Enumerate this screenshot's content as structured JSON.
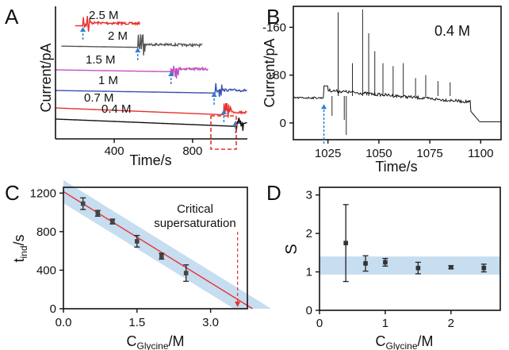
{
  "chart_data": [
    {
      "panel": "A",
      "type": "line",
      "ylabel": "Current/pA",
      "xlabel": "Time/s",
      "x_ticks": [
        400,
        800
      ],
      "xlim": [
        100,
        1080
      ],
      "series": [
        {
          "name": "2.5 M",
          "color": "#e8322f",
          "induction_time": 240,
          "trace_end": 530
        },
        {
          "name": "2 M",
          "color": "#555555",
          "induction_time": 520,
          "trace_end": 850
        },
        {
          "name": "1.5 M",
          "color": "#c052c0",
          "induction_time": 690,
          "trace_end": 880
        },
        {
          "name": "1 M",
          "color": "#3b4fb0",
          "induction_time": 910,
          "trace_end": 1080
        },
        {
          "name": "0.7 M",
          "color": "#e8322f",
          "induction_time": 960,
          "trace_end": 1080
        },
        {
          "name": "0.4 M",
          "color": "#111111",
          "induction_time": 1020,
          "trace_end": 1080
        }
      ],
      "marker_color": "#2a7fd4",
      "highlight_color": "#e8322f"
    },
    {
      "panel": "B",
      "type": "line",
      "ylabel": "Current/pA",
      "xlabel": "Time/s",
      "annotation": "0.4 M",
      "x_ticks": [
        1025,
        1050,
        1075,
        1100
      ],
      "xlim": [
        1008,
        1110
      ],
      "y_ticks": [
        -160,
        -80,
        0
      ],
      "y_inverted": true,
      "ylim": [
        -195,
        28
      ],
      "marker_time": 1023,
      "base_level": -42,
      "plateau_level": -55,
      "end_time": 1095,
      "spikes": [
        {
          "t": 1030,
          "y": -185
        },
        {
          "t": 1034,
          "y": 20
        },
        {
          "t": 1042,
          "y": -190
        },
        {
          "t": 1045,
          "y": -150
        },
        {
          "t": 1048,
          "y": -120
        },
        {
          "t": 1037,
          "y": -100
        },
        {
          "t": 1052,
          "y": -100
        },
        {
          "t": 1057,
          "y": -95
        },
        {
          "t": 1062,
          "y": -100
        },
        {
          "t": 1068,
          "y": -75
        },
        {
          "t": 1073,
          "y": -80
        },
        {
          "t": 1079,
          "y": -70
        },
        {
          "t": 1085,
          "y": -68
        },
        {
          "t": 1027,
          "y": -12
        },
        {
          "t": 1033,
          "y": -5
        }
      ]
    },
    {
      "panel": "C",
      "type": "scatter",
      "ylabel_main": "t",
      "ylabel_sub": "ind",
      "ylabel_tail": "/s",
      "xlabel_main": "C",
      "xlabel_sub": "Glycine",
      "xlabel_tail": "/M",
      "x_ticks": [
        "0.0",
        "1.5",
        "3.0"
      ],
      "xlim": [
        0,
        3.75
      ],
      "y_ticks": [
        0,
        400,
        800,
        1200
      ],
      "ylim": [
        0,
        1260
      ],
      "annotation_line1": "Critical",
      "annotation_line2": "supersaturation",
      "critical_x": 3.55,
      "points": [
        {
          "x": 0.4,
          "y": 1090,
          "err": 60
        },
        {
          "x": 0.7,
          "y": 990,
          "err": 30
        },
        {
          "x": 1.0,
          "y": 905,
          "err": 25
        },
        {
          "x": 1.5,
          "y": 700,
          "err": 60
        },
        {
          "x": 2.0,
          "y": 545,
          "err": 30
        },
        {
          "x": 2.5,
          "y": 370,
          "err": 85
        }
      ],
      "fit": {
        "slope": -315,
        "intercept": 1215,
        "band_halfwidth": 120,
        "color": "#e8322f"
      },
      "band_color": "#b9d5ec"
    },
    {
      "panel": "D",
      "type": "scatter",
      "ylabel": "S",
      "xlabel_main": "C",
      "xlabel_sub": "Glycine",
      "xlabel_tail": "/M",
      "x_ticks": [
        0,
        1,
        2
      ],
      "xlim": [
        0,
        2.75
      ],
      "y_ticks": [
        0,
        1,
        2,
        3
      ],
      "ylim": [
        0,
        3.2
      ],
      "band": [
        0.93,
        1.4
      ],
      "band_color": "#b9d5ec",
      "points": [
        {
          "x": 0.4,
          "y": 1.75,
          "err": 1.0
        },
        {
          "x": 0.7,
          "y": 1.22,
          "err": 0.2
        },
        {
          "x": 1.0,
          "y": 1.25,
          "err": 0.1
        },
        {
          "x": 1.5,
          "y": 1.1,
          "err": 0.15
        },
        {
          "x": 2.0,
          "y": 1.12,
          "err": 0.04
        },
        {
          "x": 2.5,
          "y": 1.1,
          "err": 0.1
        }
      ]
    }
  ]
}
